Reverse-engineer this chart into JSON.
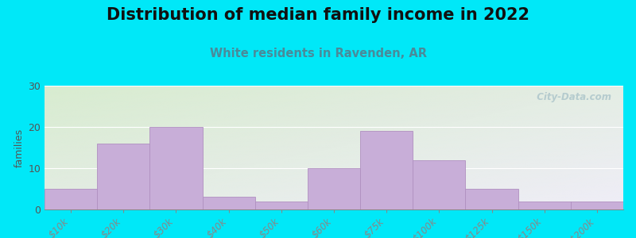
{
  "title": "Distribution of median family income in 2022",
  "subtitle": "White residents in Ravenden, AR",
  "categories": [
    "$10k",
    "$20k",
    "$30k",
    "$40k",
    "$50k",
    "$60k",
    "$75k",
    "$100k",
    "$125k",
    "$150k",
    ">$200k"
  ],
  "values": [
    5,
    16,
    20,
    3,
    2,
    10,
    19,
    12,
    5,
    2,
    2
  ],
  "bar_color": "#c8aed8",
  "bar_edge_color": "#b090c0",
  "ylabel": "families",
  "ylim": [
    0,
    30
  ],
  "yticks": [
    0,
    10,
    20,
    30
  ],
  "background_outer": "#00e8f8",
  "background_inner_topleft": "#d8ecd0",
  "background_inner_bottomright": "#f0eef8",
  "title_fontsize": 15,
  "subtitle_fontsize": 10.5,
  "subtitle_color": "#4a8a9a",
  "watermark_text": "  City-Data.com",
  "watermark_color": "#b0c8cc",
  "tick_label_color": "#884444",
  "tick_label_fontsize": 8.5
}
